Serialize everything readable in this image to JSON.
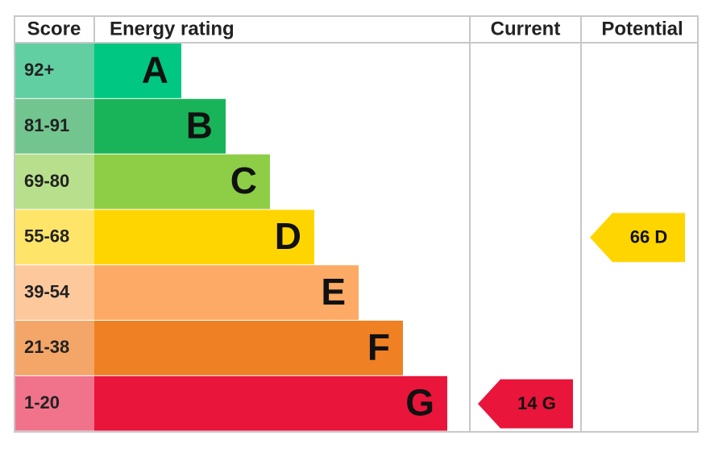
{
  "header": {
    "score": "Score",
    "rating": "Energy rating",
    "current": "Current",
    "potential": "Potential"
  },
  "bands": [
    {
      "range": "92+",
      "letter": "A",
      "color": "#00c781",
      "light": "#62cfa3"
    },
    {
      "range": "81-91",
      "letter": "B",
      "color": "#19b459",
      "light": "#72c58f"
    },
    {
      "range": "69-80",
      "letter": "C",
      "color": "#8dce46",
      "light": "#b8e08c"
    },
    {
      "range": "55-68",
      "letter": "D",
      "color": "#ffd500",
      "light": "#ffe46a"
    },
    {
      "range": "39-54",
      "letter": "E",
      "color": "#fcaa65",
      "light": "#fdc99c"
    },
    {
      "range": "21-38",
      "letter": "F",
      "color": "#ef8023",
      "light": "#f4a668"
    },
    {
      "range": "1-20",
      "letter": "G",
      "color": "#e9153b",
      "light": "#f1738b"
    }
  ],
  "current": {
    "label": "14 G"
  },
  "potential": {
    "label": "66 D"
  }
}
